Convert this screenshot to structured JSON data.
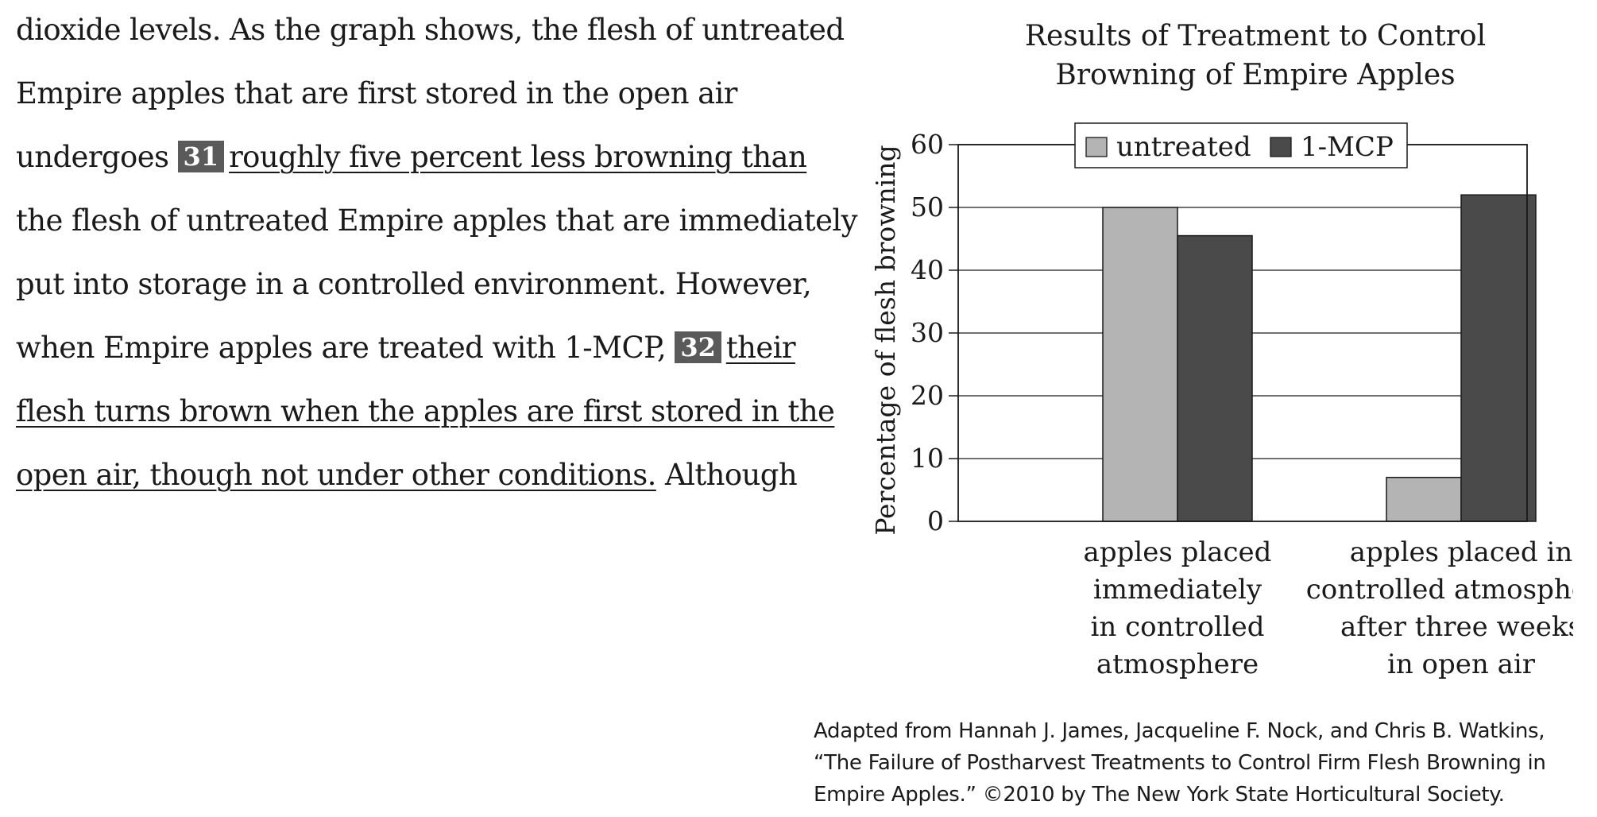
{
  "passage": {
    "line1": "dioxide levels. As the graph shows, the flesh of untreated",
    "line2": "Empire apples that are first stored in the open air",
    "line3_pre": "undergoes",
    "q31": "31",
    "line3_underlined": "roughly five percent less browning than",
    "line4": "the flesh of untreated Empire apples that are immediately",
    "line5": "put into storage in a controlled environment. However,",
    "line6_pre": "when Empire apples are treated with 1-MCP,",
    "q32": "32",
    "line6_underlined": "their",
    "line7_underlined": "flesh turns brown when the apples are first stored in the",
    "line8_underlined": "open air, though not under other conditions.",
    "line8_post": " Although"
  },
  "chart_data": {
    "type": "bar",
    "title_lines": [
      "Results of Treatment to Control",
      "Browning of Empire Apples"
    ],
    "ylabel": "Percentage of flesh browning",
    "xlabel": "",
    "ylim": [
      0,
      60
    ],
    "yticks": [
      "0",
      "10",
      "20",
      "30",
      "40",
      "50",
      "60"
    ],
    "grid": true,
    "legend_position": "top-center",
    "categories": [
      [
        "apples placed",
        "immediately",
        "in controlled",
        "atmosphere"
      ],
      [
        "apples placed in",
        "controlled atmosphere",
        "after three weeks",
        "in open air"
      ]
    ],
    "series": [
      {
        "name": "untreated",
        "color": "#b4b4b4",
        "values": [
          50,
          7
        ]
      },
      {
        "name": "1-MCP",
        "color": "#4a4a4a",
        "values": [
          45.5,
          52
        ]
      }
    ]
  },
  "source": {
    "line1": "Adapted from Hannah J. James, Jacqueline F. Nock, and Chris B. Watkins,",
    "line2": "“The Failure of Postharvest Treatments to Control Firm Flesh Browning in",
    "line3": "Empire Apples.” ©2010 by The New York State Horticultural Society."
  }
}
